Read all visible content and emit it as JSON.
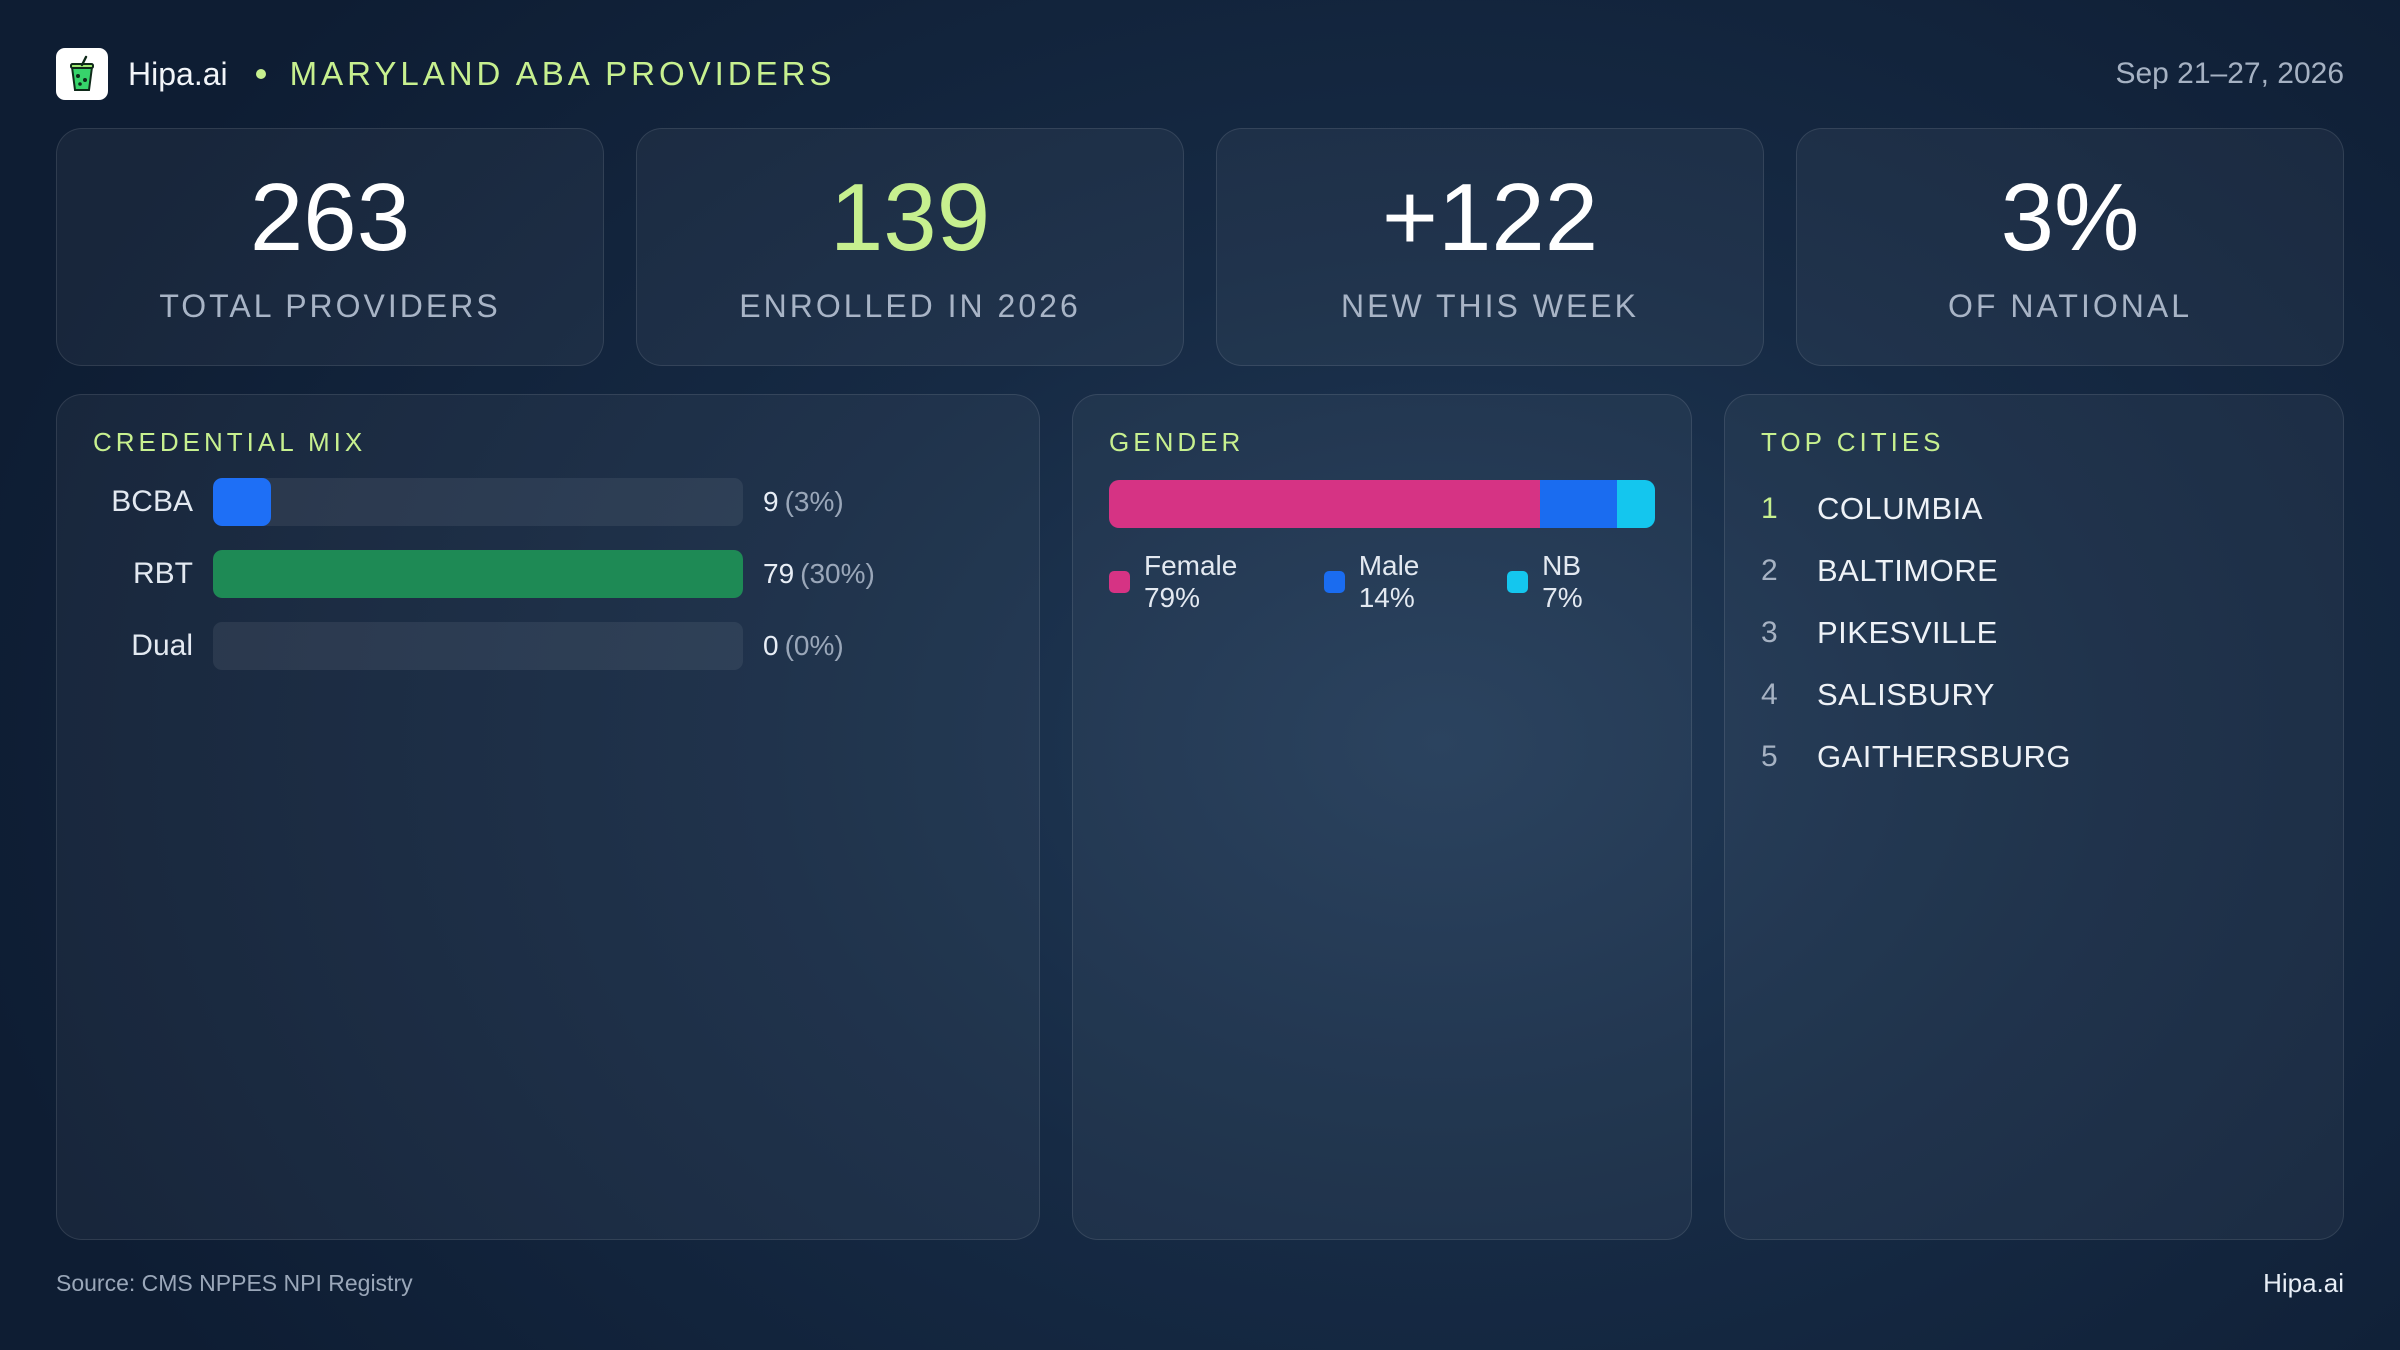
{
  "header": {
    "brand": "Hipa.ai",
    "subtitle": "MARYLAND ABA PROVIDERS",
    "date_range": "Sep 21–27, 2026",
    "logo_icon": "drink-cup-icon"
  },
  "kpis": [
    {
      "value": "263",
      "label": "TOTAL PROVIDERS",
      "accent": false
    },
    {
      "value": "139",
      "label": "ENROLLED IN 2026",
      "accent": true
    },
    {
      "value": "+122",
      "label": "NEW THIS WEEK",
      "accent": false
    },
    {
      "value": "3%",
      "label": "OF NATIONAL",
      "accent": false
    }
  ],
  "credential": {
    "title": "CREDENTIAL MIX",
    "rows": [
      {
        "label": "BCBA",
        "count": "9",
        "pct_label": "(3%)",
        "fraction": 0.11,
        "color": "#1e6ff6"
      },
      {
        "label": "RBT",
        "count": "79",
        "pct_label": "(30%)",
        "fraction": 1.0,
        "color": "#1e8a55"
      },
      {
        "label": "Dual",
        "count": "0",
        "pct_label": "(0%)",
        "fraction": 0.0,
        "color": "#1e6ff6"
      }
    ]
  },
  "gender": {
    "title": "GENDER",
    "segments": [
      {
        "label": "Female 79%",
        "percent": 79,
        "color": "#d63384"
      },
      {
        "label": "Male 14%",
        "percent": 14,
        "color": "#1a6cf0"
      },
      {
        "label": "NB 7%",
        "percent": 7,
        "color": "#14c6ee"
      }
    ]
  },
  "cities": {
    "title": "TOP CITIES",
    "items": [
      {
        "rank": "1",
        "name": "COLUMBIA"
      },
      {
        "rank": "2",
        "name": "BALTIMORE"
      },
      {
        "rank": "3",
        "name": "PIKESVILLE"
      },
      {
        "rank": "4",
        "name": "SALISBURY"
      },
      {
        "rank": "5",
        "name": "GAITHERSBURG"
      }
    ]
  },
  "footer": {
    "source": "Source: CMS NPPES NPI Registry",
    "brand": "Hipa.ai"
  }
}
